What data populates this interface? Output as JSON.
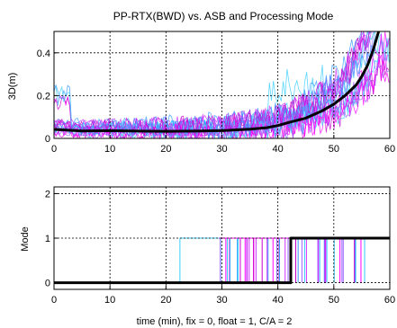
{
  "chart_data": [
    {
      "type": "line",
      "title": "PP-RTX(BWD) vs. ASB and Processing Mode",
      "xlabel": "",
      "ylabel": "3D(m)",
      "xlim": [
        0,
        60
      ],
      "ylim": [
        0,
        0.5
      ],
      "xticks": [
        0,
        10,
        20,
        30,
        40,
        50,
        60
      ],
      "yticks": [
        0,
        0.2,
        0.4
      ],
      "grid": true,
      "colors": [
        "#ff00ff",
        "#cc33ff",
        "#9966ff",
        "#33ccff",
        "#3399ff",
        "#cc00cc"
      ],
      "series": [
        {
          "color": "#000000",
          "x": [
            0,
            5,
            10,
            15,
            20,
            25,
            30,
            35,
            38,
            40,
            42,
            45,
            48,
            50,
            52,
            54,
            55,
            56,
            57,
            58
          ],
          "y": [
            0.042,
            0.035,
            0.036,
            0.034,
            0.033,
            0.034,
            0.036,
            0.043,
            0.05,
            0.06,
            0.075,
            0.095,
            0.13,
            0.16,
            0.2,
            0.25,
            0.29,
            0.34,
            0.41,
            0.5
          ]
        }
      ]
    },
    {
      "type": "line",
      "title": "",
      "xlabel": "time (min), fix = 0, float = 1, C/A = 2",
      "ylabel": "Mode",
      "xlim": [
        0,
        60
      ],
      "ylim": [
        -0.15,
        2.15
      ],
      "xticks": [
        0,
        10,
        20,
        30,
        40,
        50,
        60
      ],
      "yticks": [
        0,
        1,
        2
      ],
      "grid": true,
      "series": [
        {
          "color": "#000000",
          "x": [
            0,
            42.3,
            42.3,
            60
          ],
          "y": [
            0,
            0,
            1,
            1
          ]
        }
      ]
    }
  ]
}
